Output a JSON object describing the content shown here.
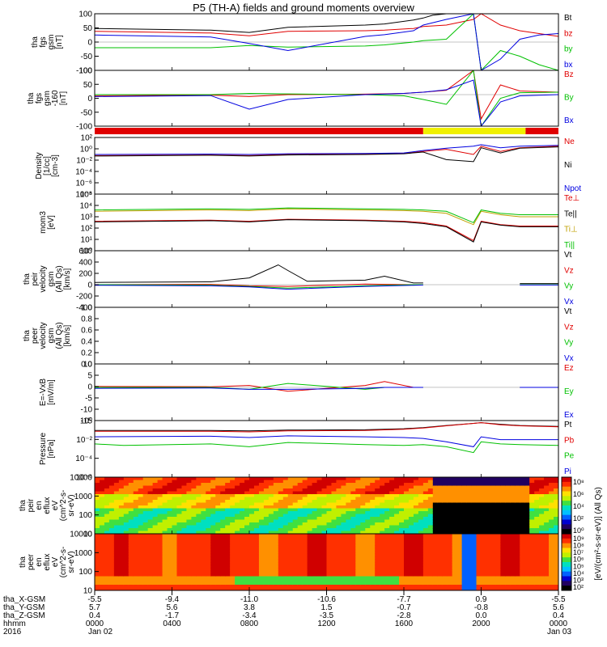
{
  "title": "P5 (TH-A) fields and ground moments overview",
  "chart_data": [
    {
      "type": "line",
      "ylabel": [
        "tha",
        "fgs",
        "gsm",
        "[nT]"
      ],
      "ylim": [
        -100,
        100
      ],
      "yticks": [
        "100",
        "50",
        "0",
        "-50",
        "-100"
      ],
      "series": [
        {
          "name": "Bt",
          "color": "#000000",
          "x": [
            0,
            6,
            8,
            10,
            14,
            15,
            16.5,
            17,
            17.5,
            18.2,
            18.5,
            20,
            21,
            22,
            23,
            24
          ],
          "y": [
            48,
            42,
            34,
            52,
            60,
            64,
            78,
            85,
            95,
            100,
            100,
            100,
            100,
            100,
            100,
            100
          ]
        },
        {
          "name": "bz",
          "color": "#e00000",
          "x": [
            0,
            6,
            8,
            10,
            14,
            15,
            16.5,
            17,
            18.2,
            19.6,
            20,
            21,
            22,
            23,
            24
          ],
          "y": [
            38,
            32,
            22,
            38,
            40,
            42,
            48,
            55,
            60,
            80,
            100,
            60,
            40,
            30,
            20
          ]
        },
        {
          "name": "by",
          "color": "#00c000",
          "x": [
            0,
            6,
            8,
            10,
            14,
            15,
            16.5,
            17,
            18.2,
            19.6,
            20,
            21,
            22,
            23,
            24
          ],
          "y": [
            -20,
            -20,
            -12,
            -18,
            -14,
            -10,
            0,
            5,
            10,
            100,
            -100,
            -30,
            -50,
            -80,
            -100
          ]
        },
        {
          "name": "bx",
          "color": "#0000e0",
          "x": [
            0,
            6,
            8,
            10,
            14,
            15,
            16.5,
            17,
            18.2,
            19.6,
            20,
            21,
            22,
            23,
            24
          ],
          "y": [
            25,
            18,
            -5,
            -30,
            20,
            26,
            40,
            60,
            80,
            100,
            -100,
            -60,
            10,
            25,
            30
          ]
        }
      ]
    },
    {
      "type": "line",
      "ylabel": [
        "tha",
        "fgs",
        "gsm",
        "-160",
        "[nT]"
      ],
      "ylim": [
        -130,
        100
      ],
      "yticks": [
        "100",
        "50",
        "0",
        "-50",
        "-100"
      ],
      "series": [
        {
          "name": "Bz",
          "color": "#e00000",
          "x": [
            0,
            6,
            8,
            10,
            14,
            16,
            17,
            18.2,
            19.6,
            20,
            21,
            22,
            24
          ],
          "y": [
            -5,
            -2,
            -8,
            0,
            2,
            5,
            10,
            18,
            100,
            -100,
            40,
            15,
            10
          ]
        },
        {
          "name": "By",
          "color": "#00c000",
          "x": [
            0,
            6,
            8,
            10,
            14,
            16,
            17,
            18.2,
            19.6,
            20,
            21,
            22,
            24
          ],
          "y": [
            0,
            0,
            5,
            3,
            0,
            -5,
            -20,
            -40,
            100,
            -130,
            -15,
            8,
            10
          ]
        },
        {
          "name": "Bx",
          "color": "#0000e0",
          "x": [
            0,
            6,
            8,
            10,
            14,
            16,
            17,
            18.2,
            19.6,
            20,
            21,
            22,
            24
          ],
          "y": [
            -8,
            -4,
            -60,
            -20,
            0,
            5,
            10,
            20,
            60,
            -130,
            -30,
            -5,
            0
          ]
        }
      ]
    },
    {
      "type": "line",
      "ylabel": [
        "Density",
        "[1/cc]",
        "[cm-3]"
      ],
      "yscale": "log",
      "ylim": [
        1e-08,
        1000
      ],
      "yticks": [
        "10²",
        "10⁰",
        "10⁻²",
        "10⁻⁴",
        "10⁻⁶",
        "10⁻⁸"
      ],
      "series": [
        {
          "name": "Ne",
          "color": "#e00000",
          "x": [
            0,
            6,
            8,
            10,
            14,
            16,
            17,
            18.2,
            19.6,
            20,
            21,
            22,
            24
          ],
          "y": [
            0.3,
            0.4,
            0.3,
            0.5,
            0.6,
            0.8,
            2,
            5,
            0.5,
            20,
            2,
            10,
            20
          ]
        },
        {
          "name": "Ni",
          "color": "#000000",
          "x": [
            0,
            6,
            8,
            10,
            14,
            16,
            17,
            18.2,
            19.6,
            20,
            21,
            22,
            24
          ],
          "y": [
            0.25,
            0.35,
            0.25,
            0.4,
            0.5,
            0.7,
            1.5,
            0.05,
            0.02,
            10,
            1,
            8,
            15
          ]
        },
        {
          "name": "Npot",
          "color": "#0000e0",
          "x": [
            0,
            6,
            8,
            10,
            14,
            16,
            17,
            18.2,
            19.6,
            20,
            21,
            22,
            24
          ],
          "y": [
            0.5,
            0.6,
            0.5,
            0.7,
            0.8,
            1,
            3,
            8,
            20,
            40,
            10,
            20,
            30
          ]
        }
      ]
    },
    {
      "type": "line",
      "ylabel": [
        "mom3",
        "[eV]"
      ],
      "yscale": "log",
      "ylim": [
        1,
        100000
      ],
      "yticks": [
        "10⁵",
        "10⁴",
        "10³",
        "10²",
        "10¹",
        "10⁰"
      ],
      "series": [
        {
          "name": "Te⊥",
          "color": "#e00000",
          "x": [
            0,
            6,
            8,
            10,
            14,
            16,
            17,
            18.2,
            19.6,
            20,
            21,
            22,
            24
          ],
          "y": [
            400,
            500,
            400,
            600,
            500,
            400,
            300,
            150,
            8,
            400,
            200,
            150,
            150
          ]
        },
        {
          "name": "Te||",
          "color": "#000000",
          "x": [
            0,
            6,
            8,
            10,
            14,
            16,
            17,
            18.2,
            19.6,
            20,
            21,
            22,
            24
          ],
          "y": [
            350,
            450,
            350,
            550,
            450,
            350,
            250,
            130,
            6,
            350,
            180,
            130,
            130
          ]
        },
        {
          "name": "Ti⊥",
          "color": "#c0a000",
          "x": [
            0,
            6,
            8,
            10,
            14,
            16,
            17,
            18.2,
            19.6,
            20,
            21,
            22,
            24
          ],
          "y": [
            3000,
            4000,
            3500,
            5000,
            4000,
            3500,
            3000,
            2000,
            200,
            3000,
            1500,
            1000,
            1000
          ]
        },
        {
          "name": "Ti||",
          "color": "#00c000",
          "x": [
            0,
            6,
            8,
            10,
            14,
            16,
            17,
            18.2,
            19.6,
            20,
            21,
            22,
            24
          ],
          "y": [
            4000,
            5000,
            4500,
            6000,
            5000,
            4500,
            4000,
            3000,
            300,
            4000,
            2000,
            1500,
            1500
          ]
        }
      ]
    },
    {
      "type": "line",
      "ylabel": [
        "tha",
        "peir",
        "velocity",
        "gsm",
        "(All Qs)",
        "[km/s]"
      ],
      "ylim": [
        -400,
        600
      ],
      "yticks": [
        "600",
        "400",
        "200",
        "0",
        "-200",
        "-400"
      ],
      "series": [
        {
          "name": "Vt",
          "color": "#000000",
          "x": [
            0,
            6,
            8,
            9.5,
            10,
            11,
            14,
            15,
            16.5,
            17,
            17.1,
            22,
            24
          ],
          "y": [
            40,
            50,
            120,
            350,
            250,
            60,
            80,
            150,
            30,
            30,
            null,
            20,
            20
          ]
        },
        {
          "name": "Vz",
          "color": "#e00000",
          "x": [
            0,
            6,
            8,
            10,
            14,
            16.5,
            17,
            17.1,
            22,
            24
          ],
          "y": [
            0,
            5,
            -20,
            -30,
            10,
            0,
            0,
            null,
            0,
            0
          ]
        },
        {
          "name": "Vy",
          "color": "#00c000",
          "x": [
            0,
            6,
            8,
            10,
            14,
            16.5,
            17,
            17.1,
            22,
            24
          ],
          "y": [
            0,
            -10,
            -30,
            -60,
            -20,
            0,
            0,
            null,
            0,
            0
          ]
        },
        {
          "name": "Vx",
          "color": "#0000e0",
          "x": [
            0,
            6,
            8,
            10,
            14,
            16.5,
            17,
            17.1,
            22,
            24
          ],
          "y": [
            -10,
            -20,
            -40,
            -80,
            -30,
            -10,
            -5,
            null,
            -5,
            -5
          ]
        }
      ]
    },
    {
      "type": "line",
      "ylabel": [
        "tha",
        "peer",
        "velocity",
        "gsm",
        "(All Qs)",
        "[km/s]"
      ],
      "ylim": [
        0,
        1
      ],
      "yticks": [
        "1.0",
        "0.8",
        "0.6",
        "0.4",
        "0.2",
        "0.0"
      ],
      "series": [
        {
          "name": "Vt",
          "color": "#000000",
          "x": [],
          "y": []
        },
        {
          "name": "Vz",
          "color": "#e00000",
          "x": [],
          "y": []
        },
        {
          "name": "Vy",
          "color": "#00c000",
          "x": [],
          "y": []
        },
        {
          "name": "Vx",
          "color": "#0000e0",
          "x": [],
          "y": []
        }
      ]
    },
    {
      "type": "line",
      "ylabel": [
        "E=-VxB",
        "[mV/m]"
      ],
      "ylim": [
        -17,
        12
      ],
      "yticks": [
        "10",
        "5",
        "0",
        "-5",
        "-10",
        "-15"
      ],
      "series": [
        {
          "name": "Ez",
          "color": "#e00000",
          "x": [
            0,
            6,
            8,
            10,
            14,
            15,
            16.5,
            17,
            17.1,
            22,
            24
          ],
          "y": [
            0.5,
            0.3,
            1,
            -2,
            1,
            3,
            0,
            0,
            null,
            0,
            0
          ]
        },
        {
          "name": "Ey",
          "color": "#00c000",
          "x": [
            0,
            6,
            8,
            10,
            14,
            15,
            16.5,
            17,
            17.1,
            22,
            24
          ],
          "y": [
            0,
            0,
            -1,
            2,
            -1,
            0,
            0,
            0,
            null,
            0,
            0
          ]
        },
        {
          "name": "Ex",
          "color": "#0000e0",
          "x": [
            0,
            6,
            8,
            10,
            14,
            15,
            16.5,
            17,
            17.1,
            22,
            24
          ],
          "y": [
            -0.5,
            -0.3,
            -1,
            -1,
            -0.5,
            0,
            0,
            0,
            null,
            0,
            0
          ]
        }
      ]
    },
    {
      "type": "line",
      "ylabel": [
        "Pressure",
        "[nPa]"
      ],
      "yscale": "log",
      "ylim": [
        1e-07,
        10
      ],
      "yticks": [
        "10⁰",
        "10⁻²",
        "10⁻⁴",
        "10⁻⁶"
      ],
      "series": [
        {
          "name": "Pt",
          "color": "#000000",
          "x": [
            0,
            6,
            8,
            10,
            14,
            16,
            17,
            18.2,
            19.6,
            20,
            21,
            22,
            24
          ],
          "y": [
            0.4,
            0.4,
            0.35,
            0.45,
            0.5,
            0.7,
            1,
            2,
            4,
            5,
            3,
            2,
            1.5
          ]
        },
        {
          "name": "Pb",
          "color": "#e00000",
          "x": [
            0,
            6,
            8,
            10,
            14,
            16,
            17,
            18.2,
            19.6,
            20,
            21,
            22,
            24
          ],
          "y": [
            0.3,
            0.3,
            0.25,
            0.35,
            0.4,
            0.6,
            0.9,
            1.8,
            4,
            5,
            2.5,
            1.8,
            1.3
          ]
        },
        {
          "name": "Pe",
          "color": "#00c000",
          "x": [
            0,
            1.5,
            6,
            8,
            10,
            14,
            16,
            17,
            18.2,
            19.6,
            20,
            21,
            22,
            24
          ],
          "y": [
            0.005,
            0.003,
            0.005,
            0.002,
            0.008,
            0.004,
            0.003,
            0.004,
            0.002,
            0.0003,
            0.01,
            0.005,
            0.004,
            0.003
          ]
        },
        {
          "name": "Pi",
          "color": "#0000e0",
          "x": [
            0,
            6,
            8,
            10,
            14,
            16,
            17,
            18.2,
            19.6,
            20,
            21,
            22,
            24
          ],
          "y": [
            0.05,
            0.06,
            0.04,
            0.07,
            0.05,
            0.04,
            0.03,
            0.01,
            0.002,
            0.05,
            0.02,
            0.02,
            0.02
          ]
        }
      ]
    },
    {
      "type": "heatmap",
      "ylabel": [
        "tha",
        "peir",
        "en",
        "eflux",
        "eV",
        "(cm^2-s-",
        "sr-eV)"
      ],
      "yscale": "log",
      "ylim": [
        7,
        20000
      ],
      "yticks": [
        "10000",
        "1000",
        "100",
        "10"
      ],
      "colorbar": {
        "ticks": [
          "10⁸",
          "10⁶",
          "10⁴",
          "10²",
          "10⁰"
        ]
      }
    },
    {
      "type": "heatmap",
      "ylabel": [
        "tha",
        "peer",
        "en",
        "eflux",
        "eV",
        "(cm^2-s-",
        "sr-eV)"
      ],
      "yscale": "log",
      "ylim": [
        7,
        20000
      ],
      "yticks": [
        "10000",
        "1000",
        "100",
        "10"
      ],
      "colorbar": {
        "label": "[eV/(cm²-s-sr-eV)] (All Qs)",
        "ticks": [
          "10⁹",
          "10⁸",
          "10⁷",
          "10⁶",
          "10⁵",
          "10⁴",
          "10³",
          "10²"
        ]
      }
    }
  ],
  "x_axis": {
    "rows": [
      {
        "label": "tha_X-GSM",
        "values": [
          "-5.5",
          "-9.4",
          "-11.0",
          "-10.6",
          "-7.7",
          "0.9",
          "-5.5"
        ]
      },
      {
        "label": "tha_Y-GSM",
        "values": [
          "5.7",
          "5.6",
          "3.8",
          "1.5",
          "-0.7",
          "-0.8",
          "5.6"
        ]
      },
      {
        "label": "tha_Z-GSM",
        "values": [
          "0.4",
          "-1.7",
          "-3.4",
          "-3.5",
          "-2.8",
          "0.0",
          "0.4"
        ]
      },
      {
        "label": "hhmm",
        "values": [
          "0000",
          "0400",
          "0800",
          "1200",
          "1600",
          "2000",
          "0000"
        ]
      }
    ],
    "year": "2016",
    "dates": [
      "Jan 02",
      "Jan 03"
    ]
  }
}
